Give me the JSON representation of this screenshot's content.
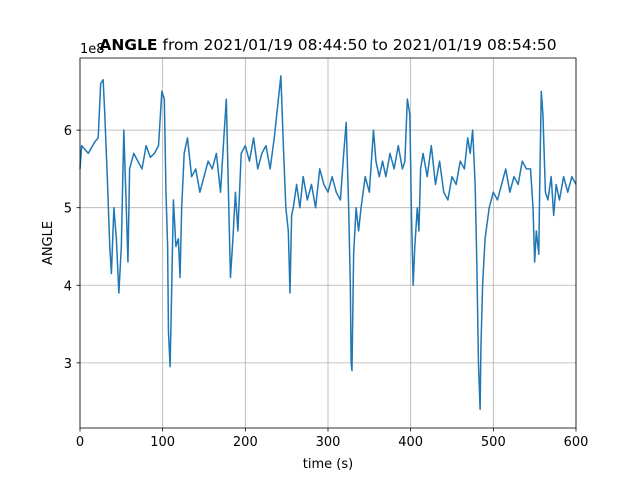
{
  "chart_data": {
    "type": "line",
    "title_parts": [
      "ANGLE",
      "from 2021/01/19 08:44:50 to 2021/01/19 08:54:50"
    ],
    "xlabel": "time (s)",
    "ylabel": "ANGLE",
    "offset_label": "1e8",
    "x": [
      0,
      2,
      10,
      18,
      22,
      25,
      28,
      30,
      33,
      36,
      38,
      41,
      44,
      47,
      50,
      53,
      56,
      58,
      60,
      65,
      70,
      75,
      80,
      85,
      90,
      95,
      99,
      102,
      104,
      106,
      107,
      109,
      111,
      113,
      116,
      119,
      121,
      123,
      126,
      130,
      135,
      140,
      145,
      150,
      155,
      160,
      165,
      170,
      174,
      177,
      180,
      182,
      185,
      188,
      191,
      195,
      200,
      205,
      210,
      215,
      220,
      225,
      230,
      235,
      239,
      243,
      246,
      249,
      252,
      254,
      256,
      258,
      262,
      266,
      270,
      275,
      280,
      285,
      290,
      295,
      300,
      305,
      310,
      315,
      319,
      322,
      325,
      327,
      328,
      329,
      331,
      334,
      337,
      340,
      345,
      350,
      355,
      358,
      362,
      366,
      370,
      375,
      380,
      385,
      390,
      393,
      396,
      399,
      401,
      403,
      405,
      408,
      410,
      412,
      415,
      420,
      425,
      430,
      435,
      440,
      445,
      450,
      455,
      460,
      465,
      469,
      472,
      475,
      478,
      480,
      482,
      484,
      485,
      487,
      490,
      495,
      500,
      505,
      510,
      515,
      520,
      525,
      530,
      535,
      540,
      545,
      548,
      550,
      552,
      555,
      556,
      558,
      560,
      563,
      566,
      570,
      573,
      576,
      580,
      585,
      590,
      595,
      600
    ],
    "values": [
      5.5,
      5.8,
      5.7,
      5.85,
      5.9,
      6.6,
      6.65,
      6.2,
      5.4,
      4.5,
      4.15,
      5.0,
      4.6,
      3.9,
      4.5,
      6.0,
      5.0,
      4.3,
      5.5,
      5.7,
      5.6,
      5.5,
      5.8,
      5.65,
      5.7,
      5.8,
      6.5,
      6.4,
      5.2,
      4.5,
      3.4,
      2.95,
      4.0,
      5.1,
      4.5,
      4.6,
      4.1,
      5.0,
      5.7,
      5.9,
      5.4,
      5.5,
      5.2,
      5.4,
      5.6,
      5.5,
      5.7,
      5.2,
      5.9,
      6.4,
      5.0,
      4.1,
      4.6,
      5.2,
      4.7,
      5.7,
      5.8,
      5.6,
      5.9,
      5.5,
      5.7,
      5.8,
      5.5,
      5.9,
      6.3,
      6.7,
      5.8,
      5.0,
      4.7,
      3.9,
      4.9,
      5.0,
      5.3,
      5.0,
      5.4,
      5.1,
      5.3,
      5.0,
      5.5,
      5.3,
      5.2,
      5.4,
      5.2,
      5.1,
      5.7,
      6.1,
      5.0,
      4.0,
      3.0,
      2.9,
      4.4,
      5.0,
      4.7,
      5.0,
      5.4,
      5.2,
      6.0,
      5.6,
      5.4,
      5.6,
      5.4,
      5.7,
      5.5,
      5.8,
      5.5,
      5.6,
      6.4,
      6.2,
      4.9,
      4.0,
      4.5,
      5.0,
      4.7,
      5.5,
      5.7,
      5.4,
      5.8,
      5.3,
      5.6,
      5.2,
      5.1,
      5.4,
      5.3,
      5.6,
      5.5,
      5.9,
      5.7,
      6.0,
      5.3,
      4.3,
      3.0,
      2.4,
      3.2,
      4.0,
      4.6,
      5.0,
      5.2,
      5.1,
      5.3,
      5.5,
      5.2,
      5.4,
      5.3,
      5.6,
      5.5,
      5.5,
      5.0,
      4.3,
      4.7,
      4.4,
      5.2,
      6.5,
      6.2,
      5.2,
      5.1,
      5.4,
      4.9,
      5.3,
      5.1,
      5.4,
      5.2,
      5.4,
      5.3
    ],
    "color": "#1f77b4",
    "xlim": [
      0,
      600
    ],
    "xticks": [
      0,
      100,
      200,
      300,
      400,
      500,
      600
    ],
    "ylim": [
      2.16,
      6.93
    ],
    "yticks": [
      3,
      4,
      5,
      6
    ],
    "grid": true
  }
}
